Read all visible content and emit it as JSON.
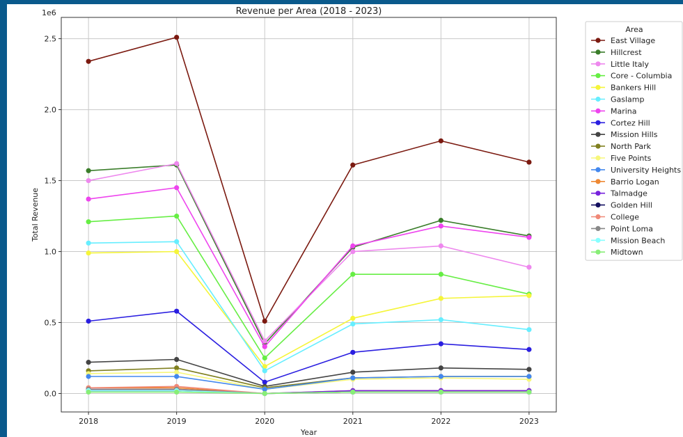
{
  "chart_data": {
    "type": "line",
    "title": "Revenue per Area (2018 - 2023)",
    "xlabel": "Year",
    "ylabel": "Total Revenue",
    "offset_label": "1e6",
    "x": [
      "2018",
      "2019",
      "2020",
      "2021",
      "2022",
      "2023"
    ],
    "yticks": [
      "0.0",
      "0.5",
      "1.0",
      "1.5",
      "2.0",
      "2.5"
    ],
    "ylim": [
      -0.13,
      2.65
    ],
    "grid": true,
    "legend_title": "Area",
    "legend_position": "outside-right",
    "series": [
      {
        "name": "East Village",
        "color": "#7b1a10",
        "values": [
          2.34,
          2.51,
          0.51,
          1.61,
          1.78,
          1.63
        ]
      },
      {
        "name": "Hillcrest",
        "color": "#3a7d2a",
        "values": [
          1.57,
          1.61,
          0.35,
          1.03,
          1.22,
          1.11
        ]
      },
      {
        "name": "Little Italy",
        "color": "#ee88ee",
        "values": [
          1.5,
          1.62,
          0.37,
          1.0,
          1.04,
          0.89
        ]
      },
      {
        "name": "Core - Columbia",
        "color": "#66ee44",
        "values": [
          1.21,
          1.25,
          0.25,
          0.84,
          0.84,
          0.7
        ]
      },
      {
        "name": "Bankers Hill",
        "color": "#f5f53a",
        "values": [
          0.99,
          1.0,
          0.19,
          0.53,
          0.67,
          0.69
        ]
      },
      {
        "name": "Gaslamp",
        "color": "#66eeff",
        "values": [
          1.06,
          1.07,
          0.16,
          0.49,
          0.52,
          0.45
        ]
      },
      {
        "name": "Marina",
        "color": "#ee44ee",
        "values": [
          1.37,
          1.45,
          0.33,
          1.04,
          1.18,
          1.1
        ]
      },
      {
        "name": "Cortez Hill",
        "color": "#2a1ee0",
        "values": [
          0.51,
          0.58,
          0.08,
          0.29,
          0.35,
          0.31
        ]
      },
      {
        "name": "Mission Hills",
        "color": "#444444",
        "values": [
          0.22,
          0.24,
          0.05,
          0.15,
          0.18,
          0.17
        ]
      },
      {
        "name": "North Park",
        "color": "#808020",
        "values": [
          0.16,
          0.18,
          0.04,
          0.11,
          0.12,
          0.12
        ]
      },
      {
        "name": "Five Points",
        "color": "#f7f77a",
        "values": [
          0.14,
          0.15,
          0.03,
          0.1,
          0.11,
          0.1
        ]
      },
      {
        "name": "University Heights",
        "color": "#4488ee",
        "values": [
          0.12,
          0.12,
          0.03,
          0.11,
          0.12,
          0.12
        ]
      },
      {
        "name": "Barrio Logan",
        "color": "#ee8833",
        "values": [
          0.04,
          0.04,
          0.0,
          0.02,
          0.02,
          0.02
        ]
      },
      {
        "name": "Talmadge",
        "color": "#7722dd",
        "values": [
          0.03,
          0.03,
          0.0,
          0.02,
          0.02,
          0.02
        ]
      },
      {
        "name": "Golden Hill",
        "color": "#141060",
        "values": [
          0.02,
          0.02,
          0.0,
          0.01,
          0.01,
          0.01
        ]
      },
      {
        "name": "College",
        "color": "#f08877",
        "values": [
          0.04,
          0.05,
          0.0,
          0.01,
          0.01,
          0.01
        ]
      },
      {
        "name": "Point Loma",
        "color": "#888888",
        "values": [
          0.03,
          0.03,
          0.0,
          0.01,
          0.01,
          0.01
        ]
      },
      {
        "name": "Mission Beach",
        "color": "#88ffff",
        "values": [
          0.02,
          0.02,
          0.0,
          0.01,
          0.01,
          0.01
        ]
      },
      {
        "name": "Midtown",
        "color": "#88ee77",
        "values": [
          0.01,
          0.01,
          0.0,
          0.01,
          0.01,
          0.01
        ]
      }
    ]
  }
}
